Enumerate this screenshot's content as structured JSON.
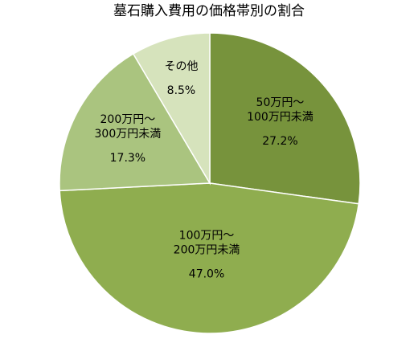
{
  "chart_data": {
    "type": "pie",
    "title": "墓石購入費用の価格帯別の割合",
    "categories": [
      [
        "50万円～",
        "100万円未満"
      ],
      [
        "100万円～",
        "200万円未満"
      ],
      [
        "200万円～",
        "300万円未満"
      ],
      [
        "その他"
      ]
    ],
    "values": [
      27.2,
      47.0,
      17.3,
      8.5
    ],
    "value_labels": [
      "27.2%",
      "47.0%",
      "17.3%",
      "8.5%"
    ],
    "colors": [
      "#77933c",
      "#8fad4f",
      "#aac47f",
      "#d6e3bc"
    ]
  }
}
